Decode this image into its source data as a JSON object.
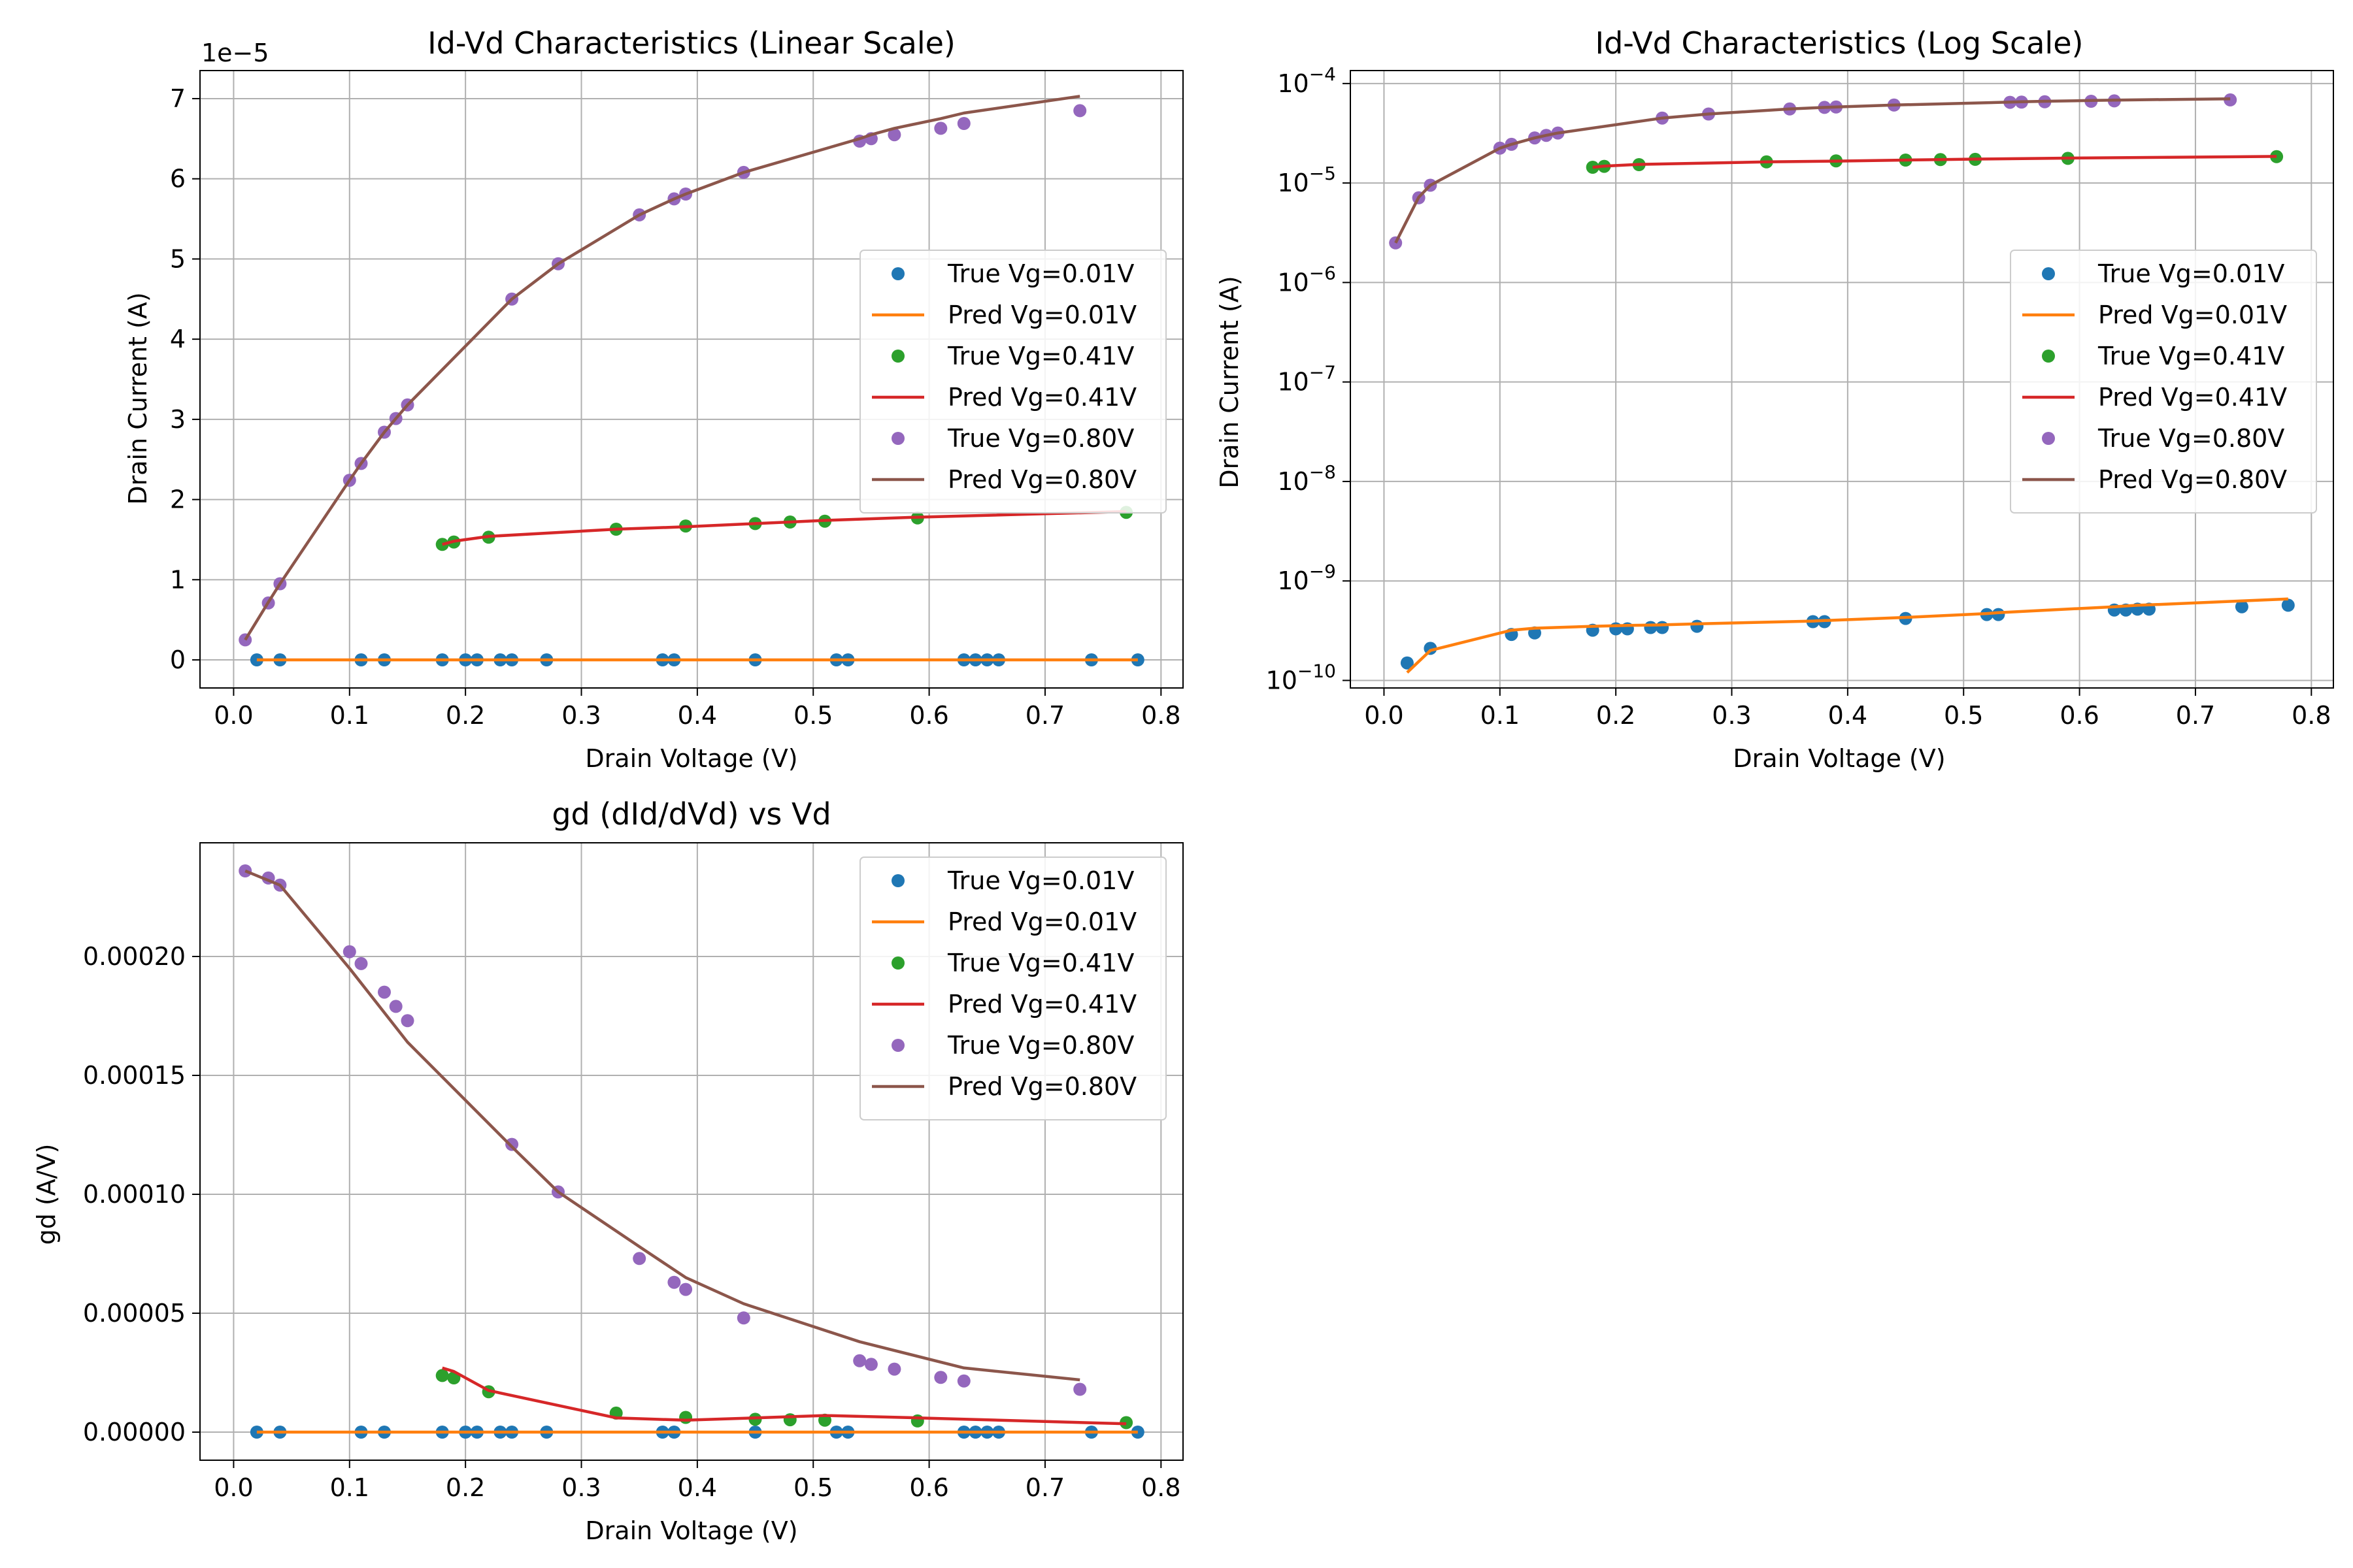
{
  "colors": {
    "true_vg_0_01": "#1f77b4",
    "pred_vg_0_01": "#ff7f0e",
    "true_vg_0_41": "#2ca02c",
    "pred_vg_0_41": "#d62728",
    "true_vg_0_80": "#9467bd",
    "pred_vg_0_80": "#8c564b"
  },
  "chart_data": [
    {
      "id": "linear",
      "type": "line",
      "title": "Id-Vd Characteristics (Linear Scale)",
      "xlabel": "Drain Voltage (V)",
      "ylabel": "Drain Current (A)",
      "offset_label": "1e−5",
      "y_scale": "linear",
      "xlim": [
        -0.029,
        0.819
      ],
      "ylim": [
        -0.35,
        7.35
      ],
      "x_ticks": [
        0.0,
        0.1,
        0.2,
        0.3,
        0.4,
        0.5,
        0.6,
        0.7,
        0.8
      ],
      "x_tick_labels": [
        "0.0",
        "0.1",
        "0.2",
        "0.3",
        "0.4",
        "0.5",
        "0.6",
        "0.7",
        "0.8"
      ],
      "y_ticks": [
        0,
        1,
        2,
        3,
        4,
        5,
        6,
        7
      ],
      "y_tick_labels": [
        "0",
        "1",
        "2",
        "3",
        "4",
        "5",
        "6",
        "7"
      ],
      "grid": true,
      "legend_position": "center-right",
      "series": [
        {
          "name": "True Vg=0.01V",
          "kind": "scatter",
          "color_key": "true_vg_0_01",
          "x": [
            0.02,
            0.04,
            0.11,
            0.13,
            0.18,
            0.2,
            0.21,
            0.23,
            0.24,
            0.27,
            0.37,
            0.38,
            0.45,
            0.52,
            0.53,
            0.63,
            0.64,
            0.65,
            0.66,
            0.74,
            0.78
          ],
          "y": [
            0,
            0,
            0,
            0,
            0,
            0,
            0,
            0,
            0,
            0,
            0,
            0,
            0,
            0,
            0,
            0,
            0,
            0,
            0,
            0,
            0
          ]
        },
        {
          "name": "Pred Vg=0.01V",
          "kind": "line",
          "color_key": "pred_vg_0_01",
          "x": [
            0.02,
            0.78
          ],
          "y": [
            0,
            0
          ]
        },
        {
          "name": "True Vg=0.41V",
          "kind": "scatter",
          "color_key": "true_vg_0_41",
          "x": [
            0.18,
            0.19,
            0.22,
            0.33,
            0.39,
            0.45,
            0.48,
            0.51,
            0.59,
            0.77
          ],
          "y": [
            1.44,
            1.47,
            1.53,
            1.63,
            1.67,
            1.7,
            1.72,
            1.73,
            1.77,
            1.84
          ]
        },
        {
          "name": "Pred Vg=0.41V",
          "kind": "line",
          "color_key": "pred_vg_0_41",
          "x": [
            0.18,
            0.19,
            0.22,
            0.33,
            0.39,
            0.45,
            0.48,
            0.51,
            0.59,
            0.77
          ],
          "y": [
            1.44,
            1.48,
            1.54,
            1.63,
            1.66,
            1.7,
            1.72,
            1.74,
            1.78,
            1.85
          ]
        },
        {
          "name": "True Vg=0.80V",
          "kind": "scatter",
          "color_key": "true_vg_0_80",
          "x": [
            0.01,
            0.03,
            0.04,
            0.1,
            0.11,
            0.13,
            0.14,
            0.15,
            0.24,
            0.28,
            0.35,
            0.38,
            0.39,
            0.44,
            0.54,
            0.55,
            0.57,
            0.61,
            0.63,
            0.73
          ],
          "y": [
            0.25,
            0.71,
            0.95,
            2.24,
            2.45,
            2.84,
            3.01,
            3.18,
            4.5,
            4.94,
            5.55,
            5.75,
            5.81,
            6.08,
            6.47,
            6.5,
            6.55,
            6.63,
            6.69,
            6.85
          ]
        },
        {
          "name": "Pred Vg=0.80V",
          "kind": "line",
          "color_key": "pred_vg_0_80",
          "x": [
            0.01,
            0.03,
            0.04,
            0.1,
            0.11,
            0.13,
            0.14,
            0.15,
            0.24,
            0.28,
            0.35,
            0.38,
            0.39,
            0.44,
            0.54,
            0.55,
            0.57,
            0.61,
            0.63,
            0.73
          ],
          "y": [
            0.25,
            0.72,
            0.95,
            2.24,
            2.45,
            2.84,
            3.01,
            3.18,
            4.5,
            4.94,
            5.55,
            5.75,
            5.81,
            6.08,
            6.5,
            6.55,
            6.63,
            6.75,
            6.82,
            7.03
          ]
        }
      ]
    },
    {
      "id": "log",
      "type": "line",
      "title": "Id-Vd Characteristics (Log Scale)",
      "xlabel": "Drain Voltage (V)",
      "ylabel": "Drain Current (A)",
      "y_scale": "log",
      "xlim": [
        -0.029,
        0.819
      ],
      "ylim": [
        8.4e-11,
        0.000135
      ],
      "x_ticks": [
        0.0,
        0.1,
        0.2,
        0.3,
        0.4,
        0.5,
        0.6,
        0.7,
        0.8
      ],
      "x_tick_labels": [
        "0.0",
        "0.1",
        "0.2",
        "0.3",
        "0.4",
        "0.5",
        "0.6",
        "0.7",
        "0.8"
      ],
      "y_ticks": [
        1e-10,
        1e-09,
        1e-08,
        1e-07,
        1e-06,
        1e-05,
        0.0001
      ],
      "y_tick_labels": [
        {
          "base": "10",
          "exp": "−10"
        },
        {
          "base": "10",
          "exp": "−9"
        },
        {
          "base": "10",
          "exp": "−8"
        },
        {
          "base": "10",
          "exp": "−7"
        },
        {
          "base": "10",
          "exp": "−6"
        },
        {
          "base": "10",
          "exp": "−5"
        },
        {
          "base": "10",
          "exp": "−4"
        }
      ],
      "grid": true,
      "legend_position": "center-right",
      "series": [
        {
          "name": "True Vg=0.01V",
          "kind": "scatter",
          "color_key": "true_vg_0_01",
          "x": [
            0.02,
            0.04,
            0.11,
            0.13,
            0.18,
            0.2,
            0.21,
            0.23,
            0.24,
            0.27,
            0.37,
            0.38,
            0.45,
            0.52,
            0.53,
            0.63,
            0.64,
            0.65,
            0.66,
            0.74,
            0.78
          ],
          "y": [
            1.5e-10,
            2.1e-10,
            2.9e-10,
            3e-10,
            3.2e-10,
            3.3e-10,
            3.3e-10,
            3.4e-10,
            3.4e-10,
            3.5e-10,
            3.9e-10,
            3.9e-10,
            4.2e-10,
            4.6e-10,
            4.6e-10,
            5.1e-10,
            5.1e-10,
            5.2e-10,
            5.2e-10,
            5.5e-10,
            5.7e-10
          ]
        },
        {
          "name": "Pred Vg=0.01V",
          "kind": "line",
          "color_key": "pred_vg_0_01",
          "x": [
            0.02,
            0.04,
            0.11,
            0.13,
            0.18,
            0.2,
            0.21,
            0.23,
            0.24,
            0.27,
            0.37,
            0.38,
            0.45,
            0.52,
            0.53,
            0.63,
            0.64,
            0.65,
            0.66,
            0.74,
            0.78
          ],
          "y": [
            1.2e-10,
            2e-10,
            3.2e-10,
            3.35e-10,
            3.5e-10,
            3.55e-10,
            3.57e-10,
            3.6e-10,
            3.62e-10,
            3.7e-10,
            3.95e-10,
            4e-10,
            4.3e-10,
            4.7e-10,
            4.8e-10,
            5.5e-10,
            5.6e-10,
            5.7e-10,
            5.75e-10,
            6.3e-10,
            6.6e-10
          ]
        },
        {
          "name": "True Vg=0.41V",
          "kind": "scatter",
          "color_key": "true_vg_0_41",
          "x": [
            0.18,
            0.19,
            0.22,
            0.33,
            0.39,
            0.45,
            0.48,
            0.51,
            0.59,
            0.77
          ],
          "y": [
            1.44e-05,
            1.47e-05,
            1.53e-05,
            1.63e-05,
            1.67e-05,
            1.7e-05,
            1.72e-05,
            1.73e-05,
            1.77e-05,
            1.84e-05
          ]
        },
        {
          "name": "Pred Vg=0.41V",
          "kind": "line",
          "color_key": "pred_vg_0_41",
          "x": [
            0.18,
            0.19,
            0.22,
            0.33,
            0.39,
            0.45,
            0.48,
            0.51,
            0.59,
            0.77
          ],
          "y": [
            1.44e-05,
            1.48e-05,
            1.54e-05,
            1.63e-05,
            1.66e-05,
            1.7e-05,
            1.72e-05,
            1.74e-05,
            1.78e-05,
            1.85e-05
          ]
        },
        {
          "name": "True Vg=0.80V",
          "kind": "scatter",
          "color_key": "true_vg_0_80",
          "x": [
            0.01,
            0.03,
            0.04,
            0.1,
            0.11,
            0.13,
            0.14,
            0.15,
            0.24,
            0.28,
            0.35,
            0.38,
            0.39,
            0.44,
            0.54,
            0.55,
            0.57,
            0.61,
            0.63,
            0.73
          ],
          "y": [
            2.5e-06,
            7.1e-06,
            9.5e-06,
            2.24e-05,
            2.45e-05,
            2.84e-05,
            3.01e-05,
            3.18e-05,
            4.5e-05,
            4.94e-05,
            5.55e-05,
            5.75e-05,
            5.81e-05,
            6.08e-05,
            6.47e-05,
            6.5e-05,
            6.55e-05,
            6.63e-05,
            6.69e-05,
            6.85e-05
          ]
        },
        {
          "name": "Pred Vg=0.80V",
          "kind": "line",
          "color_key": "pred_vg_0_80",
          "x": [
            0.01,
            0.03,
            0.04,
            0.1,
            0.11,
            0.13,
            0.14,
            0.15,
            0.24,
            0.28,
            0.35,
            0.38,
            0.39,
            0.44,
            0.54,
            0.55,
            0.57,
            0.61,
            0.63,
            0.73
          ],
          "y": [
            2.5e-06,
            7.2e-06,
            9.5e-06,
            2.24e-05,
            2.45e-05,
            2.84e-05,
            3.01e-05,
            3.18e-05,
            4.5e-05,
            4.94e-05,
            5.55e-05,
            5.75e-05,
            5.81e-05,
            6.08e-05,
            6.5e-05,
            6.55e-05,
            6.63e-05,
            6.75e-05,
            6.82e-05,
            7.03e-05
          ]
        }
      ]
    },
    {
      "id": "gd",
      "type": "line",
      "title": "gd (dId/dVd) vs Vd",
      "xlabel": "Drain Voltage (V)",
      "ylabel": "gd (A/V)",
      "y_scale": "linear",
      "xlim": [
        -0.029,
        0.819
      ],
      "ylim": [
        -1.18e-05,
        0.0002478
      ],
      "x_ticks": [
        0.0,
        0.1,
        0.2,
        0.3,
        0.4,
        0.5,
        0.6,
        0.7,
        0.8
      ],
      "x_tick_labels": [
        "0.0",
        "0.1",
        "0.2",
        "0.3",
        "0.4",
        "0.5",
        "0.6",
        "0.7",
        "0.8"
      ],
      "y_ticks": [
        0,
        5e-05,
        0.0001,
        0.00015,
        0.0002
      ],
      "y_tick_labels": [
        "0.00000",
        "0.00005",
        "0.00010",
        "0.00015",
        "0.00020"
      ],
      "grid": true,
      "legend_position": "top-right",
      "series": [
        {
          "name": "True Vg=0.01V",
          "kind": "scatter",
          "color_key": "true_vg_0_01",
          "x": [
            0.02,
            0.04,
            0.11,
            0.13,
            0.18,
            0.2,
            0.21,
            0.23,
            0.24,
            0.27,
            0.37,
            0.38,
            0.45,
            0.52,
            0.53,
            0.63,
            0.64,
            0.65,
            0.66,
            0.74,
            0.78
          ],
          "y": [
            0,
            0,
            0,
            0,
            0,
            0,
            0,
            0,
            0,
            0,
            0,
            0,
            0,
            0,
            0,
            0,
            0,
            0,
            0,
            0,
            0
          ]
        },
        {
          "name": "Pred Vg=0.01V",
          "kind": "line",
          "color_key": "pred_vg_0_01",
          "x": [
            0.02,
            0.78
          ],
          "y": [
            0,
            0
          ]
        },
        {
          "name": "True Vg=0.41V",
          "kind": "scatter",
          "color_key": "true_vg_0_41",
          "x": [
            0.18,
            0.19,
            0.22,
            0.33,
            0.39,
            0.45,
            0.48,
            0.51,
            0.59,
            0.77
          ],
          "y": [
            2.38e-05,
            2.28e-05,
            1.7e-05,
            8e-06,
            6.2e-06,
            5.4e-06,
            5.2e-06,
            5e-06,
            4.7e-06,
            4e-06
          ]
        },
        {
          "name": "Pred Vg=0.41V",
          "kind": "line",
          "color_key": "pred_vg_0_41",
          "x": [
            0.18,
            0.19,
            0.22,
            0.33,
            0.39,
            0.45,
            0.51,
            0.59,
            0.77
          ],
          "y": [
            2.7e-05,
            2.55e-05,
            1.75e-05,
            6e-06,
            5e-06,
            6e-06,
            7e-06,
            6e-06,
            3.5e-06
          ]
        },
        {
          "name": "True Vg=0.80V",
          "kind": "scatter",
          "color_key": "true_vg_0_80",
          "x": [
            0.01,
            0.03,
            0.04,
            0.1,
            0.11,
            0.13,
            0.14,
            0.15,
            0.24,
            0.28,
            0.35,
            0.38,
            0.39,
            0.44,
            0.54,
            0.55,
            0.57,
            0.61,
            0.63,
            0.73
          ],
          "y": [
            0.000236,
            0.000233,
            0.00023,
            0.000202,
            0.000197,
            0.000185,
            0.000179,
            0.000173,
            0.000121,
            0.000101,
            7.3e-05,
            6.3e-05,
            6e-05,
            4.8e-05,
            3e-05,
            2.85e-05,
            2.65e-05,
            2.3e-05,
            2.15e-05,
            1.8e-05
          ]
        },
        {
          "name": "Pred Vg=0.80V",
          "kind": "line",
          "color_key": "pred_vg_0_80",
          "x": [
            0.01,
            0.04,
            0.1,
            0.15,
            0.24,
            0.28,
            0.35,
            0.39,
            0.44,
            0.54,
            0.63,
            0.73
          ],
          "y": [
            0.000236,
            0.00023,
            0.000195,
            0.000164,
            0.00012,
            0.000101,
            7.8e-05,
            6.5e-05,
            5.4e-05,
            3.8e-05,
            2.7e-05,
            2.2e-05
          ]
        }
      ]
    }
  ]
}
